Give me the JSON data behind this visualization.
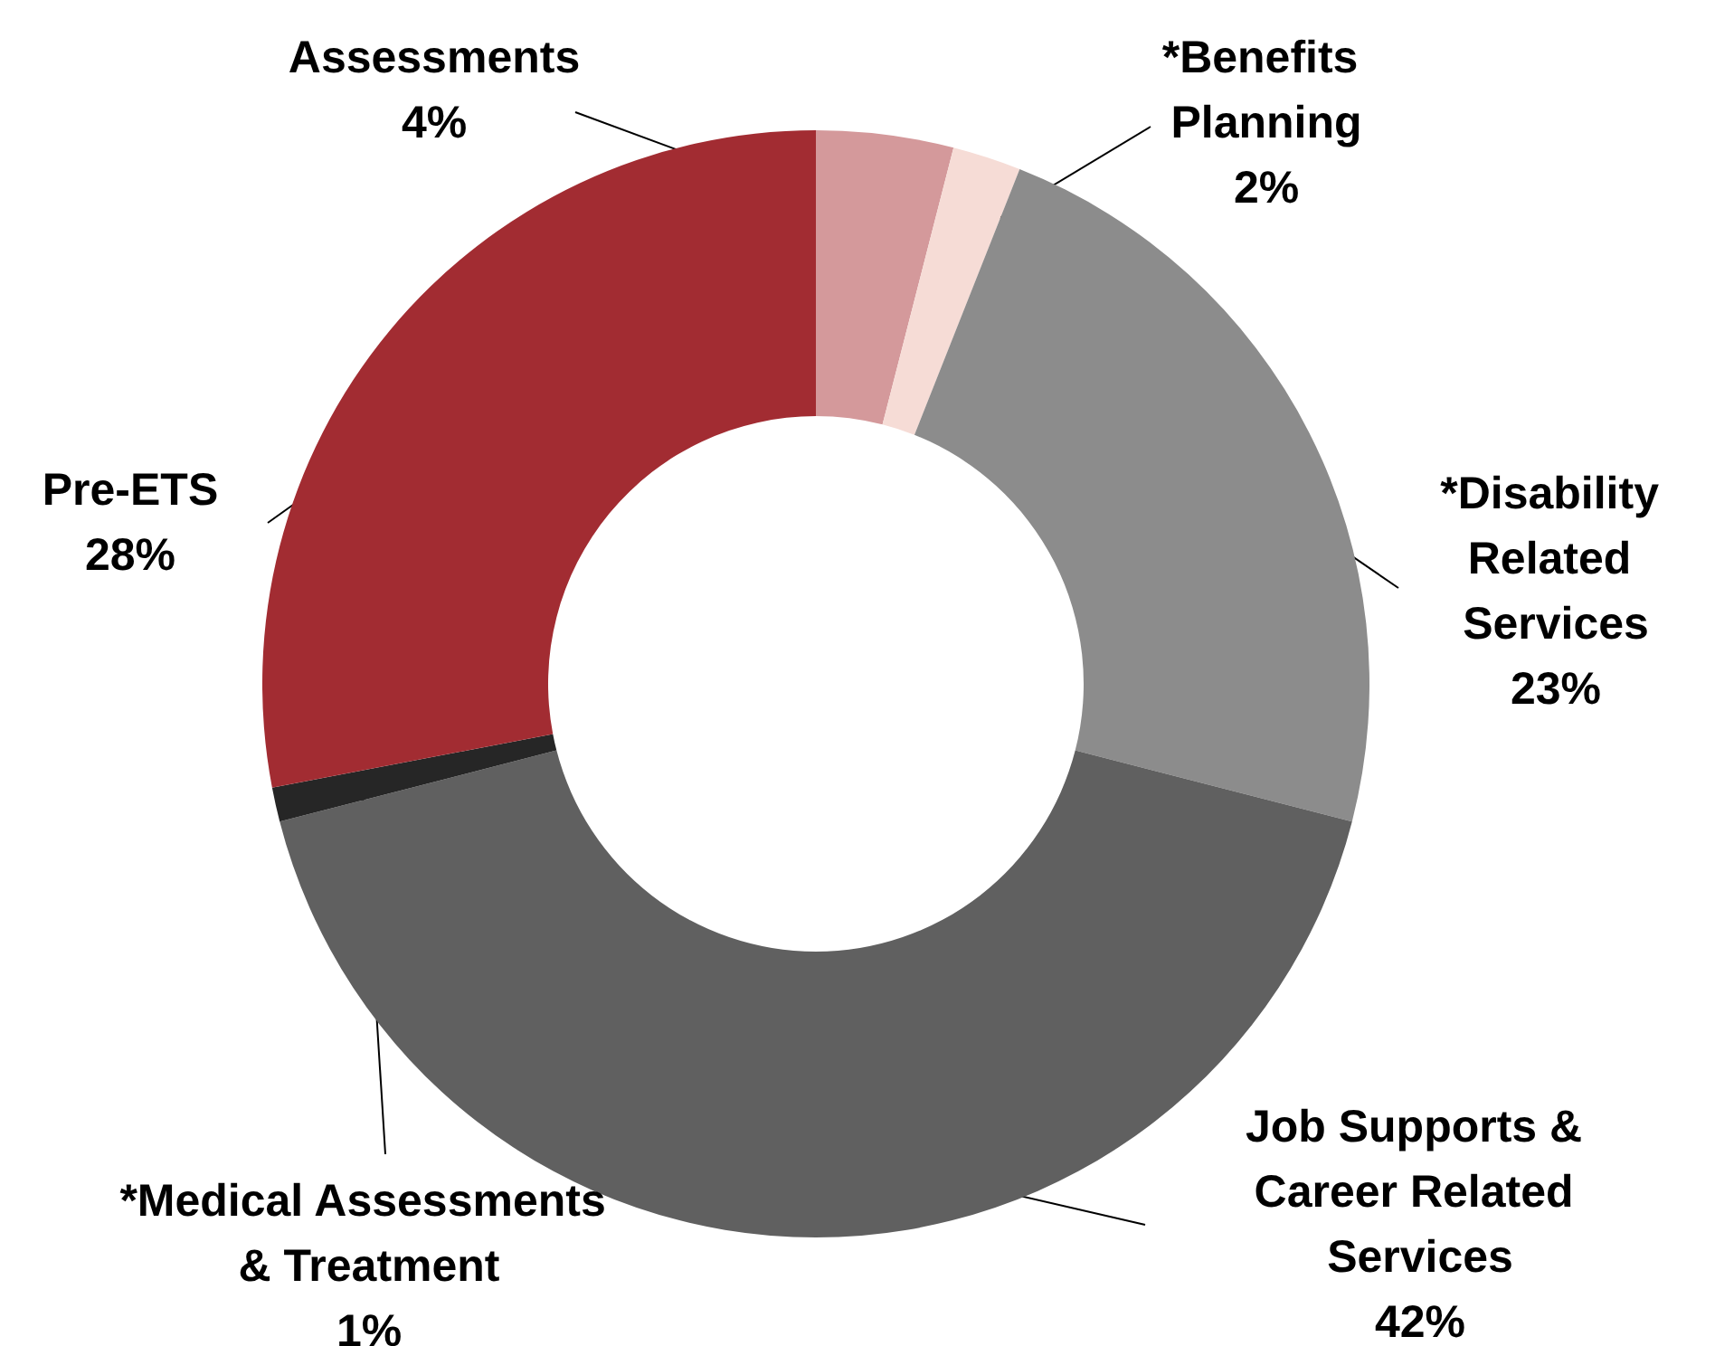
{
  "chart_data": {
    "type": "donut",
    "categories": [
      "Assessments",
      "*Benefits Planning",
      "*Disability Related Services",
      "Job Supports & Career Related Services",
      "*Medical Assessments & Treatment",
      "Pre-ETS"
    ],
    "values": [
      4,
      2,
      23,
      42,
      1,
      28
    ],
    "value_labels": [
      "4%",
      "2%",
      "23%",
      "42%",
      "1%",
      "28%"
    ],
    "colors": [
      "#d4999b",
      "#f6dcd6",
      "#8c8c8c",
      "#606060",
      "#262626",
      "#a22c32"
    ],
    "legend": false
  }
}
